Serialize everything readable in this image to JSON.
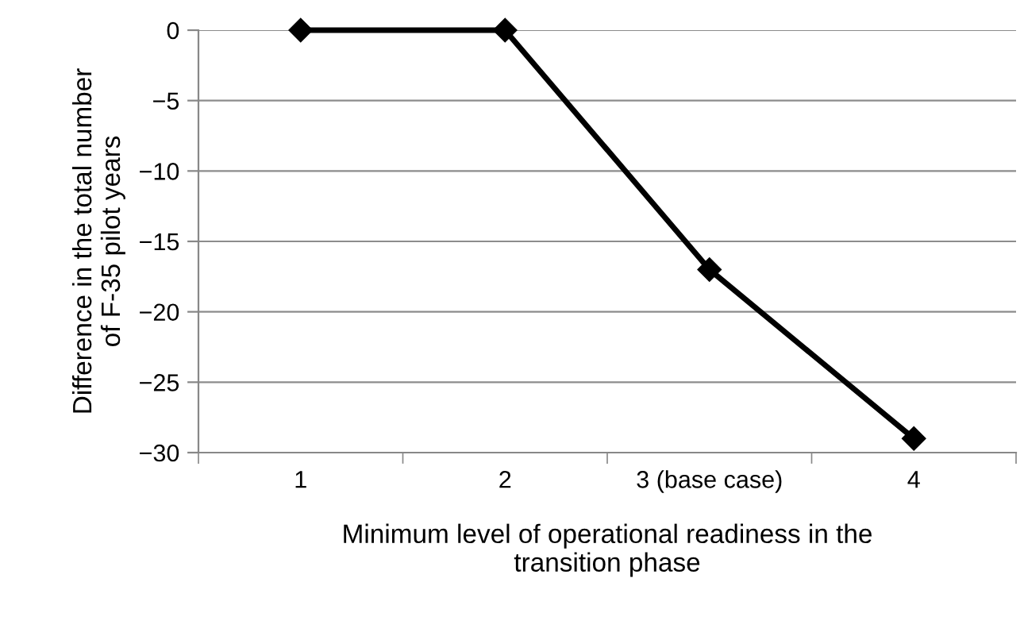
{
  "chart_data": {
    "type": "line",
    "xlabel": "Minimum level of operational readiness in the\ntransition phase",
    "ylabel": "Difference in the total number\nof F-35 pilot years",
    "categories": [
      "1",
      "2",
      "3 (base case)",
      "4"
    ],
    "series": [
      {
        "color": "#000000",
        "values": [
          0,
          0,
          -17,
          -29
        ]
      }
    ],
    "ylim": [
      -30,
      0
    ],
    "yticks": [
      {
        "value": -30,
        "label": "−30"
      },
      {
        "value": -25,
        "label": "−25"
      },
      {
        "value": -20,
        "label": "−20"
      },
      {
        "value": -15,
        "label": "−15"
      },
      {
        "value": -10,
        "label": "−10"
      },
      {
        "value": -5,
        "label": "−5"
      },
      0
    ],
    "grid": "y",
    "marker": "diamond",
    "line_style": "solid",
    "legend": false
  }
}
